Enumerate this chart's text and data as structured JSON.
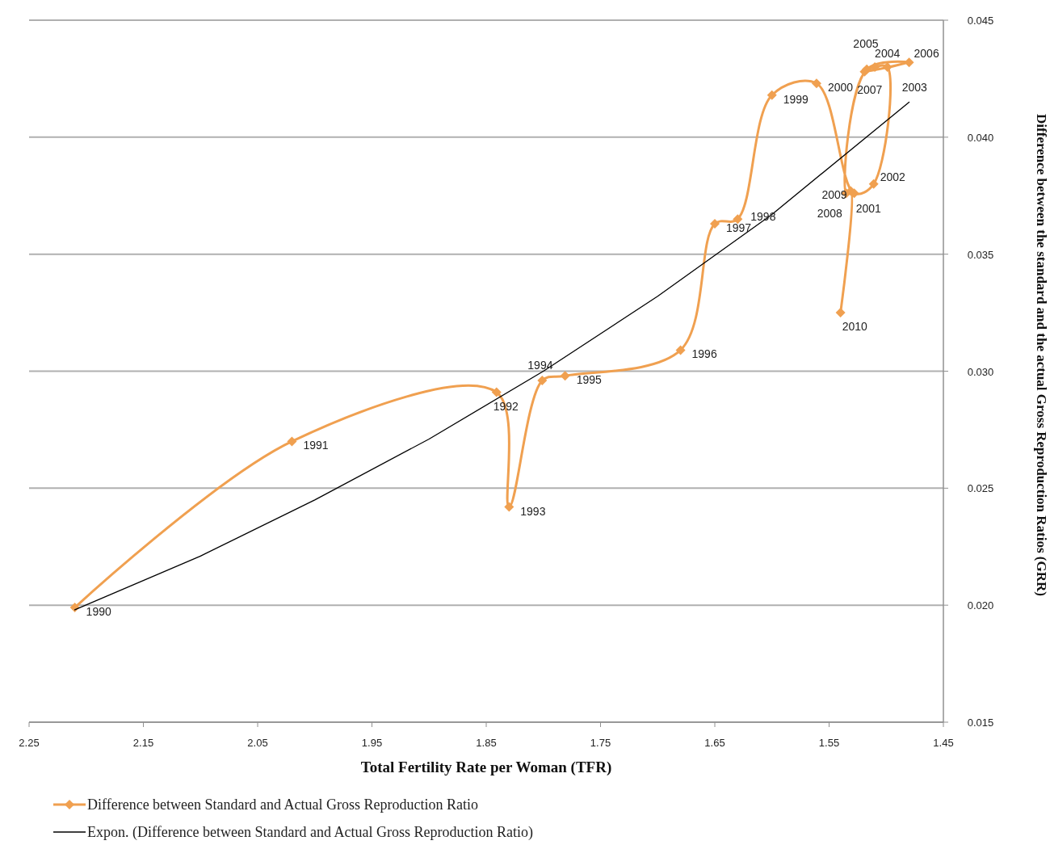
{
  "chart_data": {
    "type": "line",
    "xlabel": "Total Fertility Rate per Woman  (TFR)",
    "ylabel": "Difference between the standard and the actual Gross Reproduction Ratios (GRR)",
    "xlim": [
      2.25,
      1.45
    ],
    "xticks": [
      2.25,
      2.15,
      2.05,
      1.95,
      1.85,
      1.75,
      1.65,
      1.55,
      1.45
    ],
    "ylim": [
      0.015,
      0.045
    ],
    "yticks": [
      {
        "value": 0.015,
        "label": "0.015"
      },
      {
        "value": 0.02,
        "label": "0.020"
      },
      {
        "value": 0.025,
        "label": "0.025"
      },
      {
        "value": 0.03,
        "label": "0.030"
      },
      {
        "value": 0.035,
        "label": "0.035"
      },
      {
        "value": 0.04,
        "label": "0.040"
      },
      {
        "value": 0.045,
        "label": "0.045"
      }
    ],
    "grid": "y",
    "legend": "bottom",
    "series": [
      {
        "name": "Difference between Standard and Actual Gross Reproduction Ratio",
        "color": "#f0a050",
        "marker": "diamond",
        "x": [
          2.21,
          2.02,
          1.841,
          1.83,
          1.801,
          1.781,
          1.68,
          1.65,
          1.63,
          1.6,
          1.561,
          1.528,
          1.511,
          1.499,
          1.51,
          1.519,
          1.48,
          1.517,
          1.535,
          1.531,
          1.54
        ],
        "values": [
          0.0199,
          0.027,
          0.0291,
          0.0242,
          0.0296,
          0.0298,
          0.0309,
          0.0363,
          0.0365,
          0.0418,
          0.0423,
          0.0376,
          0.038,
          0.043,
          0.043,
          0.0428,
          0.0432,
          0.0429,
          0.0376,
          0.0377,
          0.0325
        ]
      },
      {
        "name": "Expon. (Difference between Standard and Actual Gross Reproduction Ratio)",
        "color": "#000000",
        "marker": "none",
        "x": [
          2.21,
          2.1,
          2.0,
          1.9,
          1.8,
          1.7,
          1.6,
          1.48
        ],
        "values": [
          0.0198,
          0.0221,
          0.0245,
          0.0271,
          0.03,
          0.0332,
          0.0367,
          0.0415
        ]
      }
    ],
    "annotations": [
      {
        "text": "1990",
        "x": 2.21,
        "y": 0.0199
      },
      {
        "text": "1991",
        "x": 2.02,
        "y": 0.027
      },
      {
        "text": "1992",
        "x": 1.841,
        "y": 0.0291
      },
      {
        "text": "1993",
        "x": 1.83,
        "y": 0.0242
      },
      {
        "text": "1994",
        "x": 1.801,
        "y": 0.0296
      },
      {
        "text": "1995",
        "x": 1.781,
        "y": 0.0298
      },
      {
        "text": "1996",
        "x": 1.68,
        "y": 0.0309
      },
      {
        "text": "1997",
        "x": 1.65,
        "y": 0.0363
      },
      {
        "text": "1998",
        "x": 1.63,
        "y": 0.0365
      },
      {
        "text": "1999",
        "x": 1.6,
        "y": 0.0418
      },
      {
        "text": "2000",
        "x": 1.561,
        "y": 0.0423
      },
      {
        "text": "2001",
        "x": 1.528,
        "y": 0.0376
      },
      {
        "text": "2002",
        "x": 1.511,
        "y": 0.038
      },
      {
        "text": "2003",
        "x": 1.499,
        "y": 0.043
      },
      {
        "text": "2004",
        "x": 1.51,
        "y": 0.043
      },
      {
        "text": "2005",
        "x": 1.519,
        "y": 0.0428
      },
      {
        "text": "2006",
        "x": 1.48,
        "y": 0.0432
      },
      {
        "text": "2007",
        "x": 1.517,
        "y": 0.0429
      },
      {
        "text": "2008",
        "x": 1.535,
        "y": 0.0376
      },
      {
        "text": "2009",
        "x": 1.531,
        "y": 0.0377
      },
      {
        "text": "2010",
        "x": 1.54,
        "y": 0.0325
      }
    ]
  }
}
